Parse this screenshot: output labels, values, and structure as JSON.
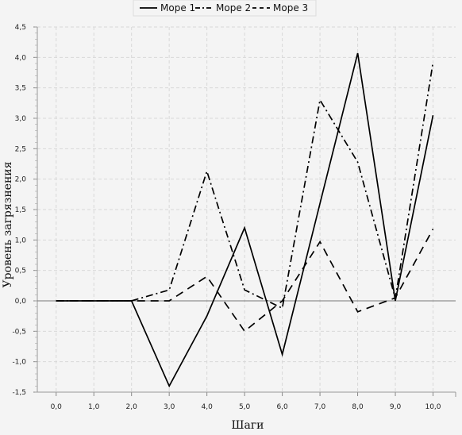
{
  "chart_data": {
    "type": "line",
    "title": "",
    "xlabel": "Шаги",
    "ylabel": "Уровень загрязнения",
    "x": [
      0,
      1,
      2,
      3,
      4,
      5,
      6,
      7,
      8,
      9,
      10
    ],
    "x_tick_labels": [
      "0,0",
      "1,0",
      "2,0",
      "3,0",
      "4,0",
      "5,0",
      "6,0",
      "7,0",
      "8,0",
      "9,0",
      "10,0"
    ],
    "y_tick_labels": [
      "4,5",
      "4,0",
      "3,5",
      "3,0",
      "2,5",
      "2,0",
      "1,5",
      "1,0",
      "0,5",
      "0,0",
      "-0,5",
      "-1,0",
      "-1,5"
    ],
    "xlim": [
      -0.5,
      10.6
    ],
    "ylim": [
      -1.5,
      4.5
    ],
    "grid": true,
    "legend_position": "top-center",
    "series": [
      {
        "name": "Море 1",
        "style": "solid",
        "values": [
          0,
          0,
          0,
          -1.4,
          -0.25,
          1.2,
          -0.88,
          1.6,
          4.07,
          0.0,
          3.05
        ]
      },
      {
        "name": "Море 2",
        "style": "dashdot",
        "values": [
          0,
          0,
          0,
          0.18,
          2.13,
          0.18,
          -0.12,
          3.3,
          2.28,
          0.04,
          3.92
        ]
      },
      {
        "name": "Море 3",
        "style": "dashed",
        "values": [
          0,
          0,
          0,
          0.0,
          0.4,
          -0.5,
          0.0,
          0.97,
          -0.18,
          0.05,
          1.18
        ]
      }
    ]
  }
}
